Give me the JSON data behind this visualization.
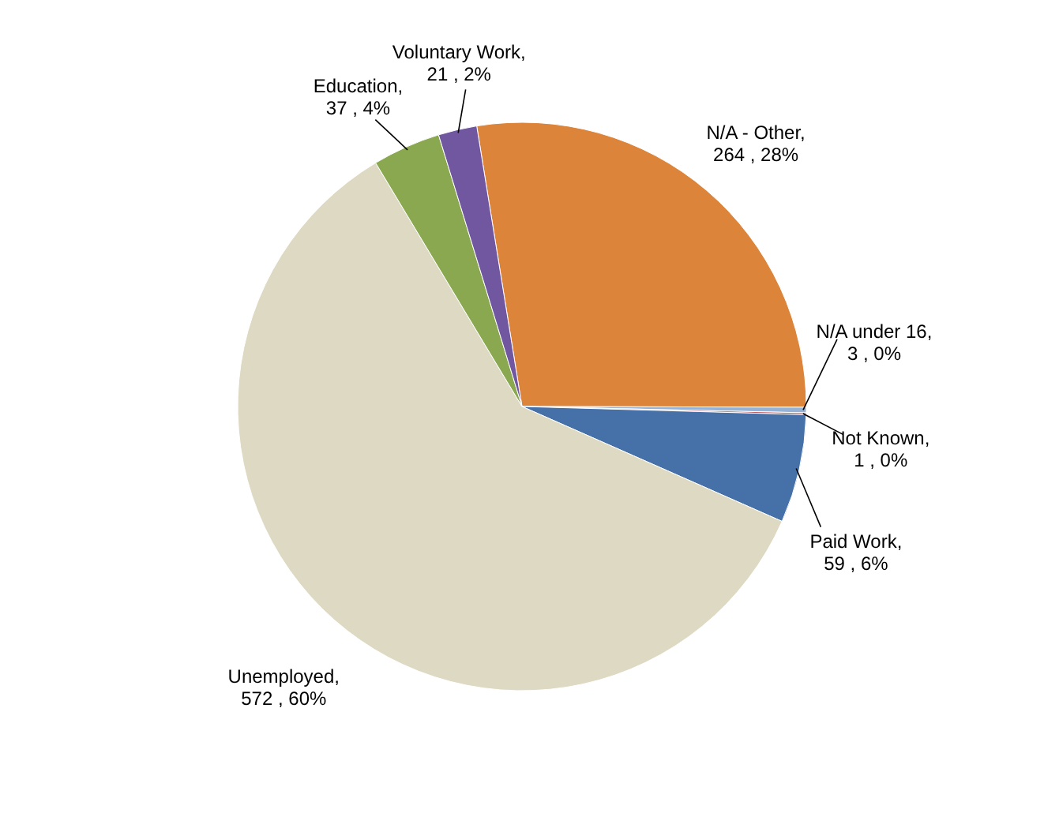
{
  "chart_data": {
    "type": "pie",
    "categories": [
      "N/A - Other",
      "N/A under 16",
      "Not Known",
      "Paid Work",
      "Unemployed",
      "Education",
      "Voluntary Work"
    ],
    "values": [
      264,
      3,
      1,
      59,
      572,
      37,
      21
    ],
    "value_labels": [
      ", 264 , 28%",
      ", 3 , 0%",
      ", 1 , 0%",
      ", 59 , 6%",
      ", 572 , 60%",
      ", 37 , 4%",
      ", 21 , 2%"
    ],
    "colors": [
      "#dd843b",
      "#95b3d7",
      "#c0504d",
      "#4571a8",
      "#ddd9c3",
      "#8aa84f",
      "#7057a0"
    ]
  }
}
